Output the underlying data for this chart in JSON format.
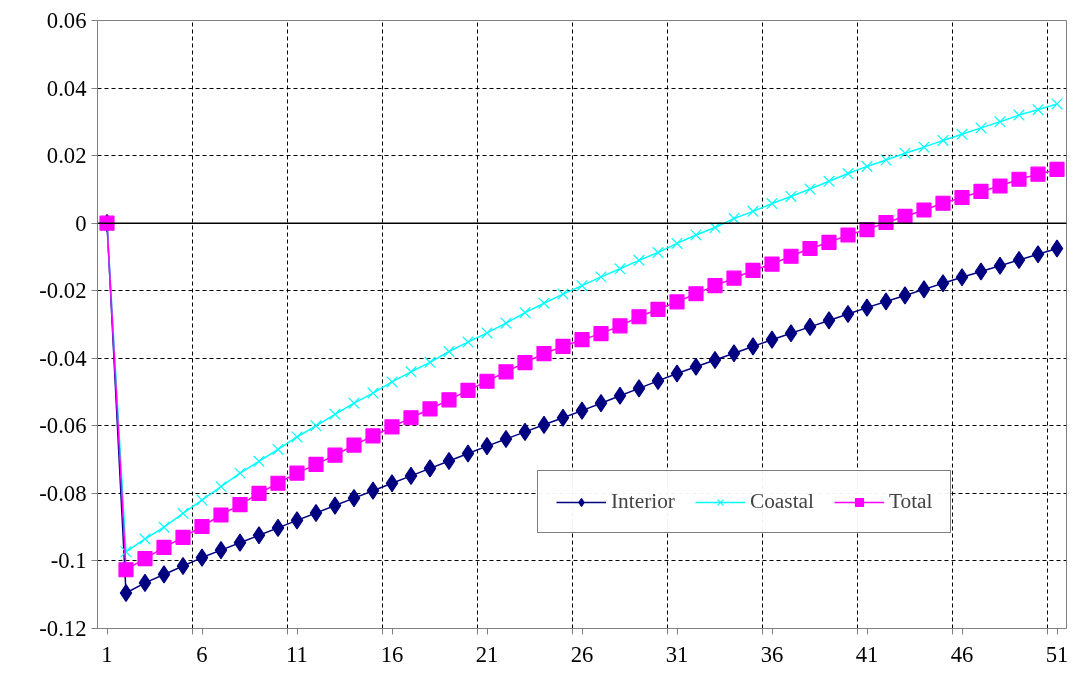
{
  "chart_data": {
    "type": "line",
    "x": [
      1,
      2,
      3,
      4,
      5,
      6,
      7,
      8,
      9,
      10,
      11,
      12,
      13,
      14,
      15,
      16,
      17,
      18,
      19,
      20,
      21,
      22,
      23,
      24,
      25,
      26,
      27,
      28,
      29,
      30,
      31,
      32,
      33,
      34,
      35,
      36,
      37,
      38,
      39,
      40,
      41,
      42,
      43,
      44,
      45,
      46,
      47,
      48,
      49,
      50,
      51
    ],
    "series": [
      {
        "name": "Interior",
        "color": "#000080",
        "marker": "diamond",
        "values": [
          0,
          -0.1095,
          -0.1065,
          -0.104,
          -0.1015,
          -0.099,
          -0.0968,
          -0.0946,
          -0.0924,
          -0.0902,
          -0.088,
          -0.0858,
          -0.0836,
          -0.0814,
          -0.0792,
          -0.077,
          -0.0748,
          -0.0726,
          -0.0704,
          -0.0682,
          -0.066,
          -0.0639,
          -0.0618,
          -0.0597,
          -0.0576,
          -0.0555,
          -0.0533,
          -0.0511,
          -0.0489,
          -0.0467,
          -0.0445,
          -0.0425,
          -0.0405,
          -0.0385,
          -0.0365,
          -0.0345,
          -0.0326,
          -0.0307,
          -0.0288,
          -0.0269,
          -0.025,
          -0.0232,
          -0.0214,
          -0.0196,
          -0.0178,
          -0.016,
          -0.0143,
          -0.0126,
          -0.0109,
          -0.0092,
          -0.0075
        ]
      },
      {
        "name": "Coastal",
        "color": "#00ffff",
        "marker": "cross",
        "values": [
          0,
          -0.0973,
          -0.0935,
          -0.09,
          -0.0859,
          -0.082,
          -0.078,
          -0.074,
          -0.0705,
          -0.067,
          -0.0633,
          -0.06,
          -0.0566,
          -0.0533,
          -0.0503,
          -0.047,
          -0.044,
          -0.0412,
          -0.038,
          -0.0352,
          -0.0325,
          -0.0296,
          -0.0265,
          -0.0237,
          -0.021,
          -0.0185,
          -0.0159,
          -0.0135,
          -0.011,
          -0.0087,
          -0.006,
          -0.0035,
          -0.0013,
          0.0014,
          0.0035,
          0.0058,
          0.0079,
          0.0101,
          0.0124,
          0.0147,
          0.0168,
          0.0187,
          0.0207,
          0.0225,
          0.0245,
          0.0263,
          0.0282,
          0.03,
          0.032,
          0.0336,
          0.0353
        ]
      },
      {
        "name": "Total",
        "color": "#ff00ff",
        "marker": "square",
        "values": [
          0,
          -0.1026,
          -0.0993,
          -0.096,
          -0.093,
          -0.0898,
          -0.0864,
          -0.0833,
          -0.08,
          -0.077,
          -0.074,
          -0.0714,
          -0.0687,
          -0.0657,
          -0.063,
          -0.0603,
          -0.0576,
          -0.055,
          -0.0523,
          -0.0495,
          -0.0468,
          -0.044,
          -0.0413,
          -0.0386,
          -0.0365,
          -0.0345,
          -0.0327,
          -0.0304,
          -0.0277,
          -0.0255,
          -0.0233,
          -0.0209,
          -0.0185,
          -0.0163,
          -0.014,
          -0.0121,
          -0.0098,
          -0.0075,
          -0.0057,
          -0.0035,
          -0.0019,
          0.0002,
          0.002,
          0.0039,
          0.0059,
          0.0076,
          0.0094,
          0.011,
          0.013,
          0.0145,
          0.0159
        ]
      }
    ],
    "xlim": [
      0.5,
      51.5
    ],
    "xticks": [
      1,
      {
        "value": 5.5,
        "label": null
      },
      6,
      {
        "value": 10.5,
        "label": null
      },
      11,
      {
        "value": 15.5,
        "label": null
      },
      16,
      {
        "value": 20.5,
        "label": null
      },
      21,
      {
        "value": 25.5,
        "label": null
      },
      26,
      {
        "value": 30.5,
        "label": null
      },
      31,
      {
        "value": 35.5,
        "label": null
      },
      36,
      {
        "value": 40.5,
        "label": null
      },
      41,
      {
        "value": 45.5,
        "label": null
      },
      46,
      {
        "value": 50.5,
        "label": null
      },
      51
    ],
    "ylim": [
      -0.12,
      0.06
    ],
    "yticks": [
      -0.12,
      -0.1,
      -0.08,
      -0.06,
      -0.04,
      -0.02,
      0,
      0.02,
      0.04,
      0.06
    ],
    "ref_lines": [
      {
        "axis": "y",
        "value": 0,
        "color": "#000000"
      }
    ],
    "grid": true,
    "legend": "bottom right"
  }
}
